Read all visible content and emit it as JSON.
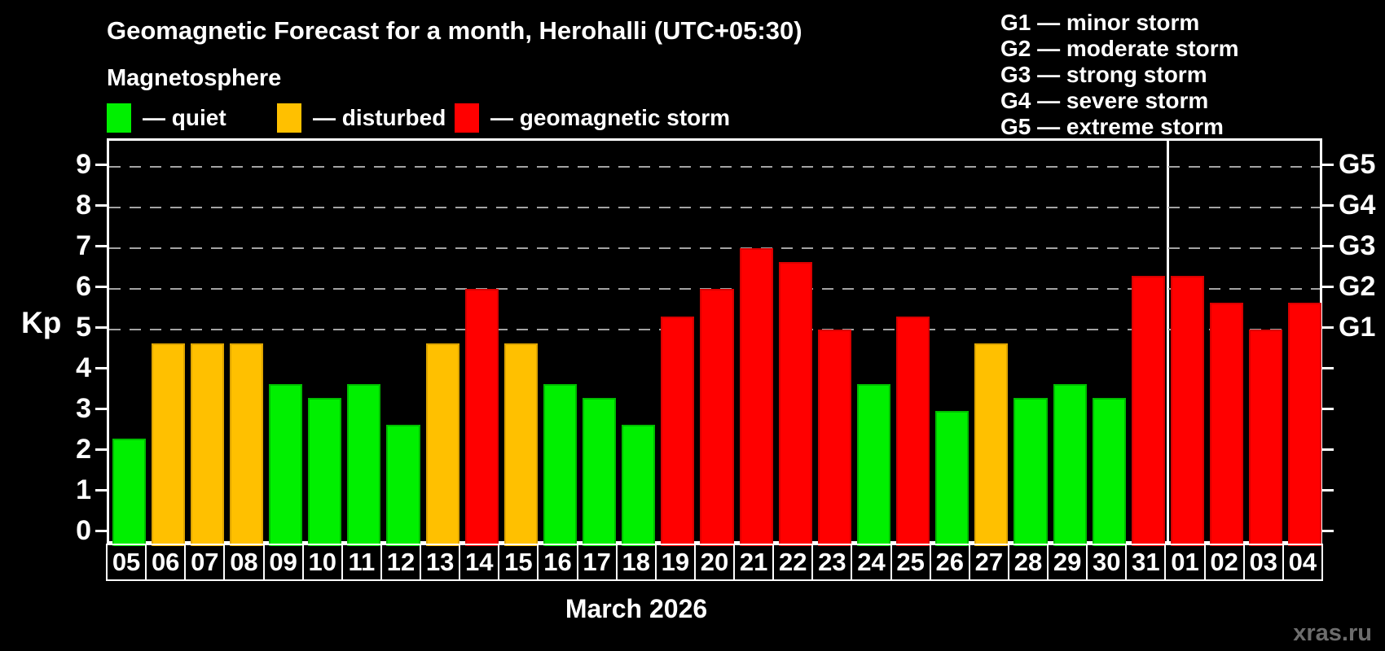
{
  "title": "Geomagnetic Forecast for a month, Herohalli (UTC+05:30)",
  "subtitle": "Magnetosphere",
  "legend": {
    "items": [
      {
        "key": "quiet",
        "label": "— quiet",
        "color": "#00f000",
        "border": "#00bc00"
      },
      {
        "key": "disturbed",
        "label": "— disturbed",
        "color": "#ffc000",
        "border": "#dda400"
      },
      {
        "key": "storm",
        "label": "— geomagnetic storm",
        "color": "#ff0000",
        "border": "#d90000"
      }
    ]
  },
  "g_scale_legend": [
    "G1 — minor storm",
    "G2 — moderate storm",
    "G3 — strong storm",
    "G4 — severe storm",
    "G5 — extreme storm"
  ],
  "axis": {
    "y_label": "Kp",
    "x_label": "March 2026"
  },
  "watermark": "xras.ru",
  "chart_data": {
    "type": "bar",
    "title": "Geomagnetic Forecast for a month, Herohalli (UTC+05:30)",
    "ylabel": "Kp",
    "xlabel": "March 2026",
    "ylim": [
      0,
      9
    ],
    "grid": "dashed horizontal lines at Kp 5-9 only",
    "legend_position": "top",
    "categories": [
      "05",
      "06",
      "07",
      "08",
      "09",
      "10",
      "11",
      "12",
      "13",
      "14",
      "15",
      "16",
      "17",
      "18",
      "19",
      "20",
      "21",
      "22",
      "23",
      "24",
      "25",
      "26",
      "27",
      "28",
      "29",
      "30",
      "31",
      "01",
      "02",
      "03",
      "04"
    ],
    "values": [
      2.33,
      4.67,
      4.67,
      4.67,
      3.67,
      3.33,
      3.67,
      2.67,
      4.67,
      6.0,
      4.67,
      3.67,
      3.33,
      2.67,
      5.33,
      6.0,
      7.0,
      6.67,
      5.0,
      3.67,
      5.33,
      3.0,
      4.67,
      3.33,
      3.67,
      3.33,
      6.33,
      6.33,
      5.67,
      5.0,
      5.67
    ],
    "bar_classes": [
      "quiet",
      "disturbed",
      "disturbed",
      "disturbed",
      "quiet",
      "quiet",
      "quiet",
      "quiet",
      "disturbed",
      "storm",
      "disturbed",
      "quiet",
      "quiet",
      "quiet",
      "storm",
      "storm",
      "storm",
      "storm",
      "storm",
      "quiet",
      "storm",
      "quiet",
      "disturbed",
      "quiet",
      "quiet",
      "quiet",
      "storm",
      "storm",
      "storm",
      "storm",
      "storm"
    ],
    "y_ticks": [
      0,
      1,
      2,
      3,
      4,
      5,
      6,
      7,
      8,
      9
    ],
    "gridlines_kp": [
      5,
      6,
      7,
      8,
      9
    ],
    "right_axis_labels": [
      {
        "text": "G1",
        "kp": 5
      },
      {
        "text": "G2",
        "kp": 6
      },
      {
        "text": "G3",
        "kp": 7
      },
      {
        "text": "G4",
        "kp": 8
      },
      {
        "text": "G5",
        "kp": 9
      }
    ],
    "month_separator_after_index": 26
  }
}
